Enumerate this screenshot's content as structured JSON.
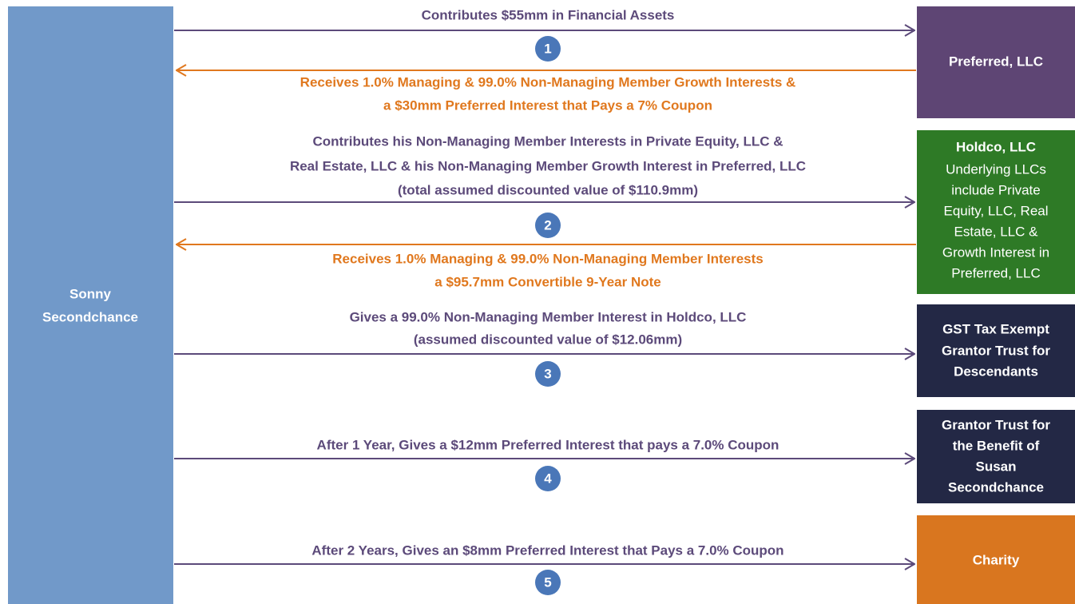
{
  "source": {
    "lines": [
      "Sonny",
      "Secondchance"
    ]
  },
  "entities": [
    {
      "lines": [
        "Preferred, LLC"
      ]
    },
    {
      "title": "Holdco, LLC",
      "lines": [
        "Underlying LLCs",
        "include Private",
        "Equity, LLC, Real",
        "Estate, LLC &",
        "Growth Interest in",
        "Preferred, LLC"
      ]
    },
    {
      "lines": [
        "GST Tax Exempt",
        "Grantor Trust for",
        "Descendants"
      ]
    },
    {
      "lines": [
        "Grantor Trust for",
        "the Benefit of",
        "Susan",
        "Secondchance"
      ]
    },
    {
      "lines": [
        "Charity"
      ]
    }
  ],
  "steps": [
    {
      "number": "1",
      "gives": [
        "Contributes $55mm in Financial Assets"
      ],
      "receives": [
        "Receives 1.0% Managing & 99.0% Non-Managing Member Growth Interests &",
        "a $30mm Preferred Interest that Pays a 7% Coupon"
      ]
    },
    {
      "number": "2",
      "gives": [
        "Contributes his Non-Managing Member Interests in Private Equity, LLC &",
        "Real Estate, LLC & his Non-Managing Member Growth Interest in Preferred, LLC",
        "(total assumed discounted value of $110.9mm)"
      ],
      "receives": [
        "Receives 1.0% Managing & 99.0% Non-Managing Member Interests",
        "a $95.7mm Convertible 9-Year Note"
      ]
    },
    {
      "number": "3",
      "gives": [
        "Gives a 99.0% Non-Managing Member Interest in Holdco, LLC",
        "(assumed discounted value of $12.06mm)"
      ]
    },
    {
      "number": "4",
      "gives": [
        "After 1 Year, Gives a $12mm Preferred Interest that pays a 7.0% Coupon"
      ]
    },
    {
      "number": "5",
      "gives": [
        "After 2 Years, Gives an $8mm Preferred Interest that Pays a 7.0% Coupon"
      ]
    }
  ]
}
